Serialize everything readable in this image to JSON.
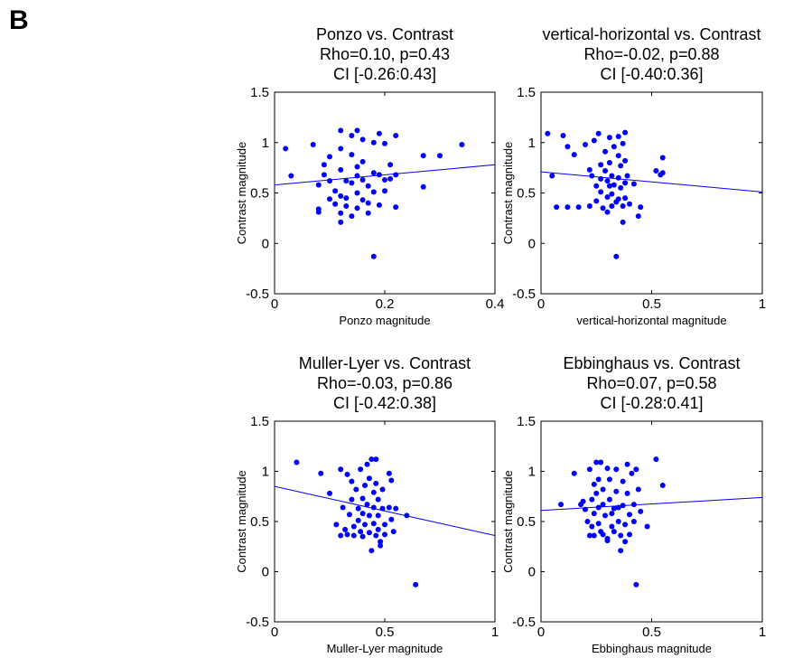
{
  "figure": {
    "panel_letter": "B"
  },
  "chart_data": [
    {
      "type": "scatter",
      "title": [
        "Ponzo vs. Contrast",
        "Rho=0.10, p=0.43",
        "CI [-0.26:0.43]"
      ],
      "xlabel": "Ponzo magnitude",
      "ylabel": "Contrast magnitude",
      "xlim": [
        0,
        0.4
      ],
      "ylim": [
        -0.5,
        1.5
      ],
      "xticks": [
        0,
        0.2,
        0.4
      ],
      "xtick_labels": [
        "0",
        "0.2",
        "0.4"
      ],
      "yticks": [
        -0.5,
        0,
        0.5,
        1,
        1.5
      ],
      "ytick_labels": [
        "-0.5",
        "0",
        "0.5",
        "1",
        "1.5"
      ],
      "grid": false,
      "point_color": "#0000ff",
      "fit_line": {
        "x": [
          0,
          0.4
        ],
        "y": [
          0.58,
          0.78
        ]
      },
      "points": [
        [
          0.02,
          0.94
        ],
        [
          0.03,
          0.67
        ],
        [
          0.07,
          0.98
        ],
        [
          0.08,
          0.34
        ],
        [
          0.08,
          0.31
        ],
        [
          0.08,
          0.58
        ],
        [
          0.09,
          0.78
        ],
        [
          0.09,
          0.68
        ],
        [
          0.1,
          0.86
        ],
        [
          0.1,
          0.62
        ],
        [
          0.1,
          0.44
        ],
        [
          0.11,
          0.52
        ],
        [
          0.11,
          0.39
        ],
        [
          0.12,
          1.12
        ],
        [
          0.12,
          0.94
        ],
        [
          0.12,
          0.73
        ],
        [
          0.12,
          0.47
        ],
        [
          0.12,
          0.3
        ],
        [
          0.12,
          0.21
        ],
        [
          0.13,
          0.62
        ],
        [
          0.13,
          0.45
        ],
        [
          0.13,
          0.37
        ],
        [
          0.14,
          1.07
        ],
        [
          0.14,
          0.88
        ],
        [
          0.14,
          0.6
        ],
        [
          0.14,
          0.27
        ],
        [
          0.15,
          1.12
        ],
        [
          0.15,
          0.76
        ],
        [
          0.15,
          0.67
        ],
        [
          0.15,
          0.5
        ],
        [
          0.15,
          0.35
        ],
        [
          0.16,
          1.03
        ],
        [
          0.16,
          0.81
        ],
        [
          0.16,
          0.63
        ],
        [
          0.16,
          0.43
        ],
        [
          0.17,
          0.57
        ],
        [
          0.17,
          0.4
        ],
        [
          0.17,
          0.3
        ],
        [
          0.18,
          1.0
        ],
        [
          0.18,
          0.7
        ],
        [
          0.18,
          0.51
        ],
        [
          0.18,
          -0.13
        ],
        [
          0.19,
          1.09
        ],
        [
          0.19,
          0.68
        ],
        [
          0.19,
          0.38
        ],
        [
          0.2,
          0.99
        ],
        [
          0.2,
          0.63
        ],
        [
          0.2,
          0.52
        ],
        [
          0.21,
          0.78
        ],
        [
          0.21,
          0.64
        ],
        [
          0.22,
          1.07
        ],
        [
          0.22,
          0.68
        ],
        [
          0.22,
          0.36
        ],
        [
          0.27,
          0.87
        ],
        [
          0.27,
          0.56
        ],
        [
          0.3,
          0.87
        ],
        [
          0.34,
          0.98
        ]
      ]
    },
    {
      "type": "scatter",
      "title": [
        "vertical-horizontal vs. Contrast",
        "Rho=-0.02, p=0.88",
        "CI [-0.40:0.36]"
      ],
      "xlabel": "vertical-horizontal magnitude",
      "ylabel": "Contrast magnitude",
      "xlim": [
        0,
        1
      ],
      "ylim": [
        -0.5,
        1.5
      ],
      "xticks": [
        0,
        0.5,
        1
      ],
      "xtick_labels": [
        "0",
        "0.5",
        "1"
      ],
      "yticks": [
        -0.5,
        0,
        0.5,
        1,
        1.5
      ],
      "ytick_labels": [
        "-0.5",
        "0",
        "0.5",
        "1",
        "1.5"
      ],
      "grid": false,
      "point_color": "#0000ff",
      "fit_line": {
        "x": [
          0,
          1
        ],
        "y": [
          0.71,
          0.51
        ]
      },
      "points": [
        [
          0.03,
          1.09
        ],
        [
          0.05,
          0.67
        ],
        [
          0.07,
          0.36
        ],
        [
          0.1,
          1.07
        ],
        [
          0.12,
          0.96
        ],
        [
          0.12,
          0.36
        ],
        [
          0.15,
          0.88
        ],
        [
          0.17,
          0.36
        ],
        [
          0.2,
          0.98
        ],
        [
          0.22,
          0.73
        ],
        [
          0.22,
          0.37
        ],
        [
          0.23,
          0.67
        ],
        [
          0.24,
          1.02
        ],
        [
          0.25,
          0.57
        ],
        [
          0.25,
          0.42
        ],
        [
          0.26,
          1.09
        ],
        [
          0.27,
          0.78
        ],
        [
          0.27,
          0.64
        ],
        [
          0.27,
          0.51
        ],
        [
          0.28,
          0.35
        ],
        [
          0.29,
          0.91
        ],
        [
          0.29,
          0.72
        ],
        [
          0.3,
          0.62
        ],
        [
          0.3,
          0.46
        ],
        [
          0.3,
          0.31
        ],
        [
          0.31,
          1.05
        ],
        [
          0.31,
          0.8
        ],
        [
          0.31,
          0.57
        ],
        [
          0.32,
          0.67
        ],
        [
          0.32,
          0.49
        ],
        [
          0.32,
          0.37
        ],
        [
          0.33,
          0.96
        ],
        [
          0.33,
          0.58
        ],
        [
          0.34,
          0.41
        ],
        [
          0.34,
          -0.13
        ],
        [
          0.35,
          1.06
        ],
        [
          0.35,
          0.87
        ],
        [
          0.35,
          0.65
        ],
        [
          0.35,
          0.44
        ],
        [
          0.36,
          0.77
        ],
        [
          0.36,
          0.55
        ],
        [
          0.37,
          0.99
        ],
        [
          0.37,
          0.37
        ],
        [
          0.37,
          0.21
        ],
        [
          0.38,
          1.1
        ],
        [
          0.38,
          0.82
        ],
        [
          0.38,
          0.6
        ],
        [
          0.38,
          0.45
        ],
        [
          0.39,
          0.67
        ],
        [
          0.4,
          0.39
        ],
        [
          0.42,
          0.59
        ],
        [
          0.44,
          0.27
        ],
        [
          0.45,
          0.36
        ],
        [
          0.52,
          0.72
        ],
        [
          0.54,
          0.68
        ],
        [
          0.55,
          0.85
        ],
        [
          0.55,
          0.7
        ]
      ]
    },
    {
      "type": "scatter",
      "title": [
        "Muller-Lyer vs. Contrast",
        "Rho=-0.03, p=0.86",
        "CI [-0.42:0.38]"
      ],
      "xlabel": "Muller-Lyer magnitude",
      "ylabel": "Contrast magnitude",
      "xlim": [
        0,
        1
      ],
      "ylim": [
        -0.5,
        1.5
      ],
      "xticks": [
        0,
        0.5,
        1
      ],
      "xtick_labels": [
        "0",
        "0.5",
        "1"
      ],
      "yticks": [
        -0.5,
        0,
        0.5,
        1,
        1.5
      ],
      "ytick_labels": [
        "-0.5",
        "0",
        "0.5",
        "1",
        "1.5"
      ],
      "grid": false,
      "point_color": "#0000ff",
      "fit_line": {
        "x": [
          0,
          1
        ],
        "y": [
          0.85,
          0.36
        ]
      },
      "points": [
        [
          0.1,
          1.09
        ],
        [
          0.21,
          0.98
        ],
        [
          0.25,
          0.78
        ],
        [
          0.28,
          0.47
        ],
        [
          0.3,
          1.02
        ],
        [
          0.3,
          0.36
        ],
        [
          0.31,
          0.64
        ],
        [
          0.32,
          0.42
        ],
        [
          0.33,
          0.97
        ],
        [
          0.33,
          0.37
        ],
        [
          0.34,
          0.57
        ],
        [
          0.35,
          0.9
        ],
        [
          0.35,
          0.72
        ],
        [
          0.36,
          0.45
        ],
        [
          0.36,
          0.36
        ],
        [
          0.37,
          0.82
        ],
        [
          0.38,
          0.63
        ],
        [
          0.38,
          0.51
        ],
        [
          0.39,
          1.02
        ],
        [
          0.39,
          0.4
        ],
        [
          0.4,
          0.73
        ],
        [
          0.4,
          0.58
        ],
        [
          0.4,
          0.35
        ],
        [
          0.41,
          0.86
        ],
        [
          0.41,
          0.47
        ],
        [
          0.42,
          1.07
        ],
        [
          0.42,
          0.67
        ],
        [
          0.43,
          0.93
        ],
        [
          0.43,
          0.56
        ],
        [
          0.43,
          0.39
        ],
        [
          0.44,
          0.21
        ],
        [
          0.44,
          1.12
        ],
        [
          0.45,
          0.79
        ],
        [
          0.45,
          0.64
        ],
        [
          0.45,
          0.48
        ],
        [
          0.46,
          1.12
        ],
        [
          0.46,
          0.88
        ],
        [
          0.46,
          0.36
        ],
        [
          0.47,
          0.72
        ],
        [
          0.47,
          0.56
        ],
        [
          0.47,
          0.42
        ],
        [
          0.48,
          0.3
        ],
        [
          0.48,
          0.26
        ],
        [
          0.49,
          0.82
        ],
        [
          0.49,
          0.63
        ],
        [
          0.5,
          0.47
        ],
        [
          0.5,
          0.37
        ],
        [
          0.52,
          0.98
        ],
        [
          0.52,
          0.64
        ],
        [
          0.53,
          0.91
        ],
        [
          0.53,
          0.52
        ],
        [
          0.54,
          0.4
        ],
        [
          0.55,
          0.63
        ],
        [
          0.6,
          0.56
        ],
        [
          0.64,
          -0.13
        ]
      ]
    },
    {
      "type": "scatter",
      "title": [
        "Ebbinghaus vs. Contrast",
        "Rho=0.07, p=0.58",
        "CI [-0.28:0.41]"
      ],
      "xlabel": "Ebbinghaus magnitude",
      "ylabel": "Contrast magnitude",
      "xlim": [
        0,
        1
      ],
      "ylim": [
        -0.5,
        1.5
      ],
      "xticks": [
        0,
        0.5,
        1
      ],
      "xtick_labels": [
        "0",
        "0.5",
        "1"
      ],
      "yticks": [
        -0.5,
        0,
        0.5,
        1,
        1.5
      ],
      "ytick_labels": [
        "-0.5",
        "0",
        "0.5",
        "1",
        "1.5"
      ],
      "grid": false,
      "point_color": "#0000ff",
      "fit_line": {
        "x": [
          0,
          1
        ],
        "y": [
          0.61,
          0.74
        ]
      },
      "points": [
        [
          0.09,
          0.67
        ],
        [
          0.15,
          0.98
        ],
        [
          0.18,
          0.67
        ],
        [
          0.19,
          0.7
        ],
        [
          0.2,
          0.62
        ],
        [
          0.21,
          0.5
        ],
        [
          0.22,
          1.02
        ],
        [
          0.22,
          0.36
        ],
        [
          0.23,
          0.72
        ],
        [
          0.23,
          0.45
        ],
        [
          0.24,
          0.87
        ],
        [
          0.24,
          0.58
        ],
        [
          0.24,
          0.36
        ],
        [
          0.25,
          1.09
        ],
        [
          0.25,
          0.78
        ],
        [
          0.26,
          0.92
        ],
        [
          0.26,
          0.64
        ],
        [
          0.26,
          0.48
        ],
        [
          0.27,
          0.4
        ],
        [
          0.27,
          1.09
        ],
        [
          0.28,
          0.82
        ],
        [
          0.28,
          0.67
        ],
        [
          0.28,
          0.37
        ],
        [
          0.29,
          0.56
        ],
        [
          0.3,
          1.03
        ],
        [
          0.3,
          0.31
        ],
        [
          0.3,
          0.33
        ],
        [
          0.31,
          0.92
        ],
        [
          0.31,
          0.72
        ],
        [
          0.32,
          0.58
        ],
        [
          0.32,
          0.45
        ],
        [
          0.33,
          0.63
        ],
        [
          0.33,
          0.4
        ],
        [
          0.34,
          1.02
        ],
        [
          0.34,
          0.8
        ],
        [
          0.35,
          0.64
        ],
        [
          0.35,
          0.5
        ],
        [
          0.36,
          0.36
        ],
        [
          0.36,
          0.21
        ],
        [
          0.37,
          0.9
        ],
        [
          0.37,
          0.66
        ],
        [
          0.38,
          0.47
        ],
        [
          0.38,
          0.3
        ],
        [
          0.39,
          1.07
        ],
        [
          0.39,
          0.78
        ],
        [
          0.4,
          0.57
        ],
        [
          0.4,
          0.37
        ],
        [
          0.41,
          0.98
        ],
        [
          0.42,
          0.67
        ],
        [
          0.42,
          0.5
        ],
        [
          0.43,
          1.02
        ],
        [
          0.43,
          -0.13
        ],
        [
          0.44,
          0.82
        ],
        [
          0.45,
          0.6
        ],
        [
          0.48,
          0.45
        ],
        [
          0.52,
          1.12
        ],
        [
          0.55,
          0.86
        ]
      ]
    }
  ]
}
